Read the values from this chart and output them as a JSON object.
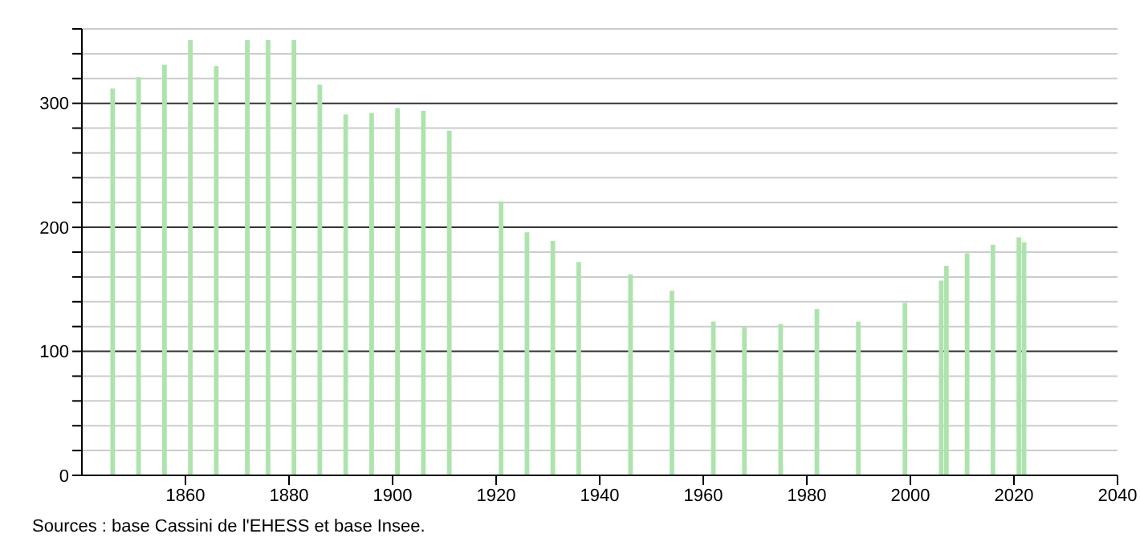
{
  "chart_data": {
    "type": "bar",
    "x": [
      1846,
      1851,
      1856,
      1861,
      1866,
      1872,
      1876,
      1881,
      1886,
      1891,
      1896,
      1901,
      1906,
      1911,
      1921,
      1926,
      1931,
      1936,
      1946,
      1954,
      1962,
      1968,
      1975,
      1982,
      1990,
      1999,
      2006,
      2007,
      2011,
      2016,
      2021,
      2022
    ],
    "values": [
      312,
      321,
      331,
      351,
      330,
      351,
      351,
      351,
      315,
      291,
      292,
      296,
      294,
      278,
      221,
      196,
      189,
      172,
      162,
      149,
      124,
      120,
      122,
      134,
      124,
      139,
      157,
      169,
      179,
      186,
      192,
      188
    ],
    "color": "#aee3ae",
    "xlim": [
      1840,
      2040
    ],
    "xticks": [
      1860,
      1880,
      1900,
      1920,
      1940,
      1960,
      1980,
      2000,
      2020,
      2040
    ],
    "ylim": [
      0,
      360
    ],
    "yticks": [
      0,
      {
        "value": 20,
        "label": null
      },
      {
        "value": 40,
        "label": null
      },
      {
        "value": 60,
        "label": null
      },
      {
        "value": 80,
        "label": null
      },
      100,
      {
        "value": 120,
        "label": null
      },
      {
        "value": 140,
        "label": null
      },
      {
        "value": 160,
        "label": null
      },
      {
        "value": 180,
        "label": null
      },
      200,
      {
        "value": 220,
        "label": null
      },
      {
        "value": 240,
        "label": null
      },
      {
        "value": 260,
        "label": null
      },
      {
        "value": 280,
        "label": null
      },
      300,
      {
        "value": 320,
        "label": null
      },
      {
        "value": 340,
        "label": null
      },
      {
        "value": 360,
        "label": null
      }
    ],
    "grid": "y",
    "annotations": [
      "Sources : base Cassini de l'EHESS et base Insee."
    ]
  }
}
